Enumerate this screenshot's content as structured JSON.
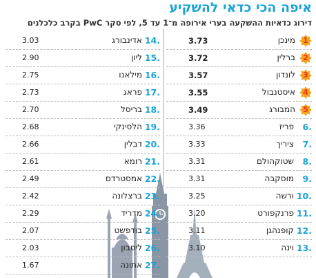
{
  "title": "איפה הכי כדאי להשקיע",
  "subtitle": "דירוג כדאיות ההשקעה בערי אירופה מ־1 עד 5, לפי סקר PwC בקרב כלכלנים",
  "colors": {
    "accent": "#1aa3d6",
    "badge": "#f7a21b",
    "badge_text": "#e4371d",
    "divider": "#aaaaaa"
  },
  "illustration": "european-landmarks-silhouette (Big Ben, Hagia Sophia, Eiffel Tower)",
  "chart_data": {
    "type": "table",
    "title": "איפה הכי כדאי להשקיע",
    "subtitle": "דירוג כדאיות ההשקעה בערי אירופה מ־1 עד 5, לפי סקר PwC בקרב כלכלנים",
    "columns": [
      "rank",
      "city",
      "score"
    ],
    "rows": [
      {
        "rank": "1",
        "city": "מינכן",
        "score": "3.73"
      },
      {
        "rank": "2",
        "city": "ברלין",
        "score": "3.72"
      },
      {
        "rank": "3",
        "city": "לונדון",
        "score": "3.57"
      },
      {
        "rank": "4",
        "city": "איסטנבול",
        "score": "3.55"
      },
      {
        "rank": "5",
        "city": "המבורג",
        "score": "3.49"
      },
      {
        "rank": "6.",
        "city": "פריז",
        "score": "3.36"
      },
      {
        "rank": "7.",
        "city": "ציריך",
        "score": "3.33"
      },
      {
        "rank": "8.",
        "city": "שטוקהולם",
        "score": "3.31"
      },
      {
        "rank": "9.",
        "city": "מוסקבה",
        "score": "3.31"
      },
      {
        "rank": "10.",
        "city": "ורשה",
        "score": "3.25"
      },
      {
        "rank": "11.",
        "city": "פרנקפורט",
        "score": "3.20"
      },
      {
        "rank": "12.",
        "city": "קופנהגן",
        "score": "3.11"
      },
      {
        "rank": "13.",
        "city": "וינה",
        "score": "3.10"
      },
      {
        "rank": "14.",
        "city": "אדינבורג",
        "score": "3.03"
      },
      {
        "rank": "15.",
        "city": "ליון",
        "score": "2.90"
      },
      {
        "rank": "16.",
        "city": "מילאנו",
        "score": "2.75"
      },
      {
        "rank": "17.",
        "city": "פראג",
        "score": "2.73"
      },
      {
        "rank": "18.",
        "city": "בריסל",
        "score": "2.70"
      },
      {
        "rank": "19.",
        "city": "הלסינקי",
        "score": "2.68"
      },
      {
        "rank": "20.",
        "city": "דבלין",
        "score": "2.66"
      },
      {
        "rank": "21.",
        "city": "רומא",
        "score": "2.61"
      },
      {
        "rank": "22.",
        "city": "אמסטרדם",
        "score": "2.49"
      },
      {
        "rank": "23.",
        "city": "ברצלונה",
        "score": "2.42"
      },
      {
        "rank": "24.",
        "city": "מדריד",
        "score": "2.29"
      },
      {
        "rank": "25.",
        "city": "בודפשט",
        "score": "2.07"
      },
      {
        "rank": "26.",
        "city": "ליסבון",
        "score": "2.03"
      },
      {
        "rank": "27.",
        "city": "אתונה",
        "score": "1.67"
      }
    ]
  }
}
